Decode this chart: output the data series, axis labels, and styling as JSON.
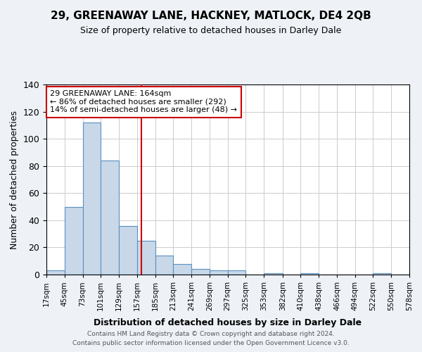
{
  "title": "29, GREENAWAY LANE, HACKNEY, MATLOCK, DE4 2QB",
  "subtitle": "Size of property relative to detached houses in Darley Dale",
  "xlabel": "Distribution of detached houses by size in Darley Dale",
  "ylabel": "Number of detached properties",
  "footnote1": "Contains HM Land Registry data © Crown copyright and database right 2024.",
  "footnote2": "Contains public sector information licensed under the Open Government Licence v3.0.",
  "annotation_line1": "29 GREENAWAY LANE: 164sqm",
  "annotation_line2": "← 86% of detached houses are smaller (292)",
  "annotation_line3": "14% of semi-detached houses are larger (48) →",
  "bar_edges": [
    17,
    45,
    73,
    101,
    129,
    157,
    185,
    213,
    241,
    269,
    297,
    325,
    353,
    382,
    410,
    438,
    466,
    494,
    522,
    550,
    578
  ],
  "bar_heights": [
    3,
    50,
    112,
    84,
    36,
    25,
    14,
    8,
    4,
    3,
    3,
    0,
    1,
    0,
    1,
    0,
    0,
    0,
    1,
    0
  ],
  "bar_color": "#c8d8e8",
  "bar_edge_color": "#5a8fc0",
  "vline_x": 164,
  "vline_color": "#cc0000",
  "ylim": [
    0,
    140
  ],
  "yticks": [
    0,
    20,
    40,
    60,
    80,
    100,
    120,
    140
  ],
  "xtick_labels": [
    "17sqm",
    "45sqm",
    "73sqm",
    "101sqm",
    "129sqm",
    "157sqm",
    "185sqm",
    "213sqm",
    "241sqm",
    "269sqm",
    "297sqm",
    "325sqm",
    "353sqm",
    "382sqm",
    "410sqm",
    "438sqm",
    "466sqm",
    "494sqm",
    "522sqm",
    "550sqm",
    "578sqm"
  ],
  "background_color": "#eef2f7",
  "plot_bg_color": "#ffffff",
  "grid_color": "#cccccc",
  "annotation_box_color": "#ffffff",
  "annotation_box_edge": "#cc0000"
}
